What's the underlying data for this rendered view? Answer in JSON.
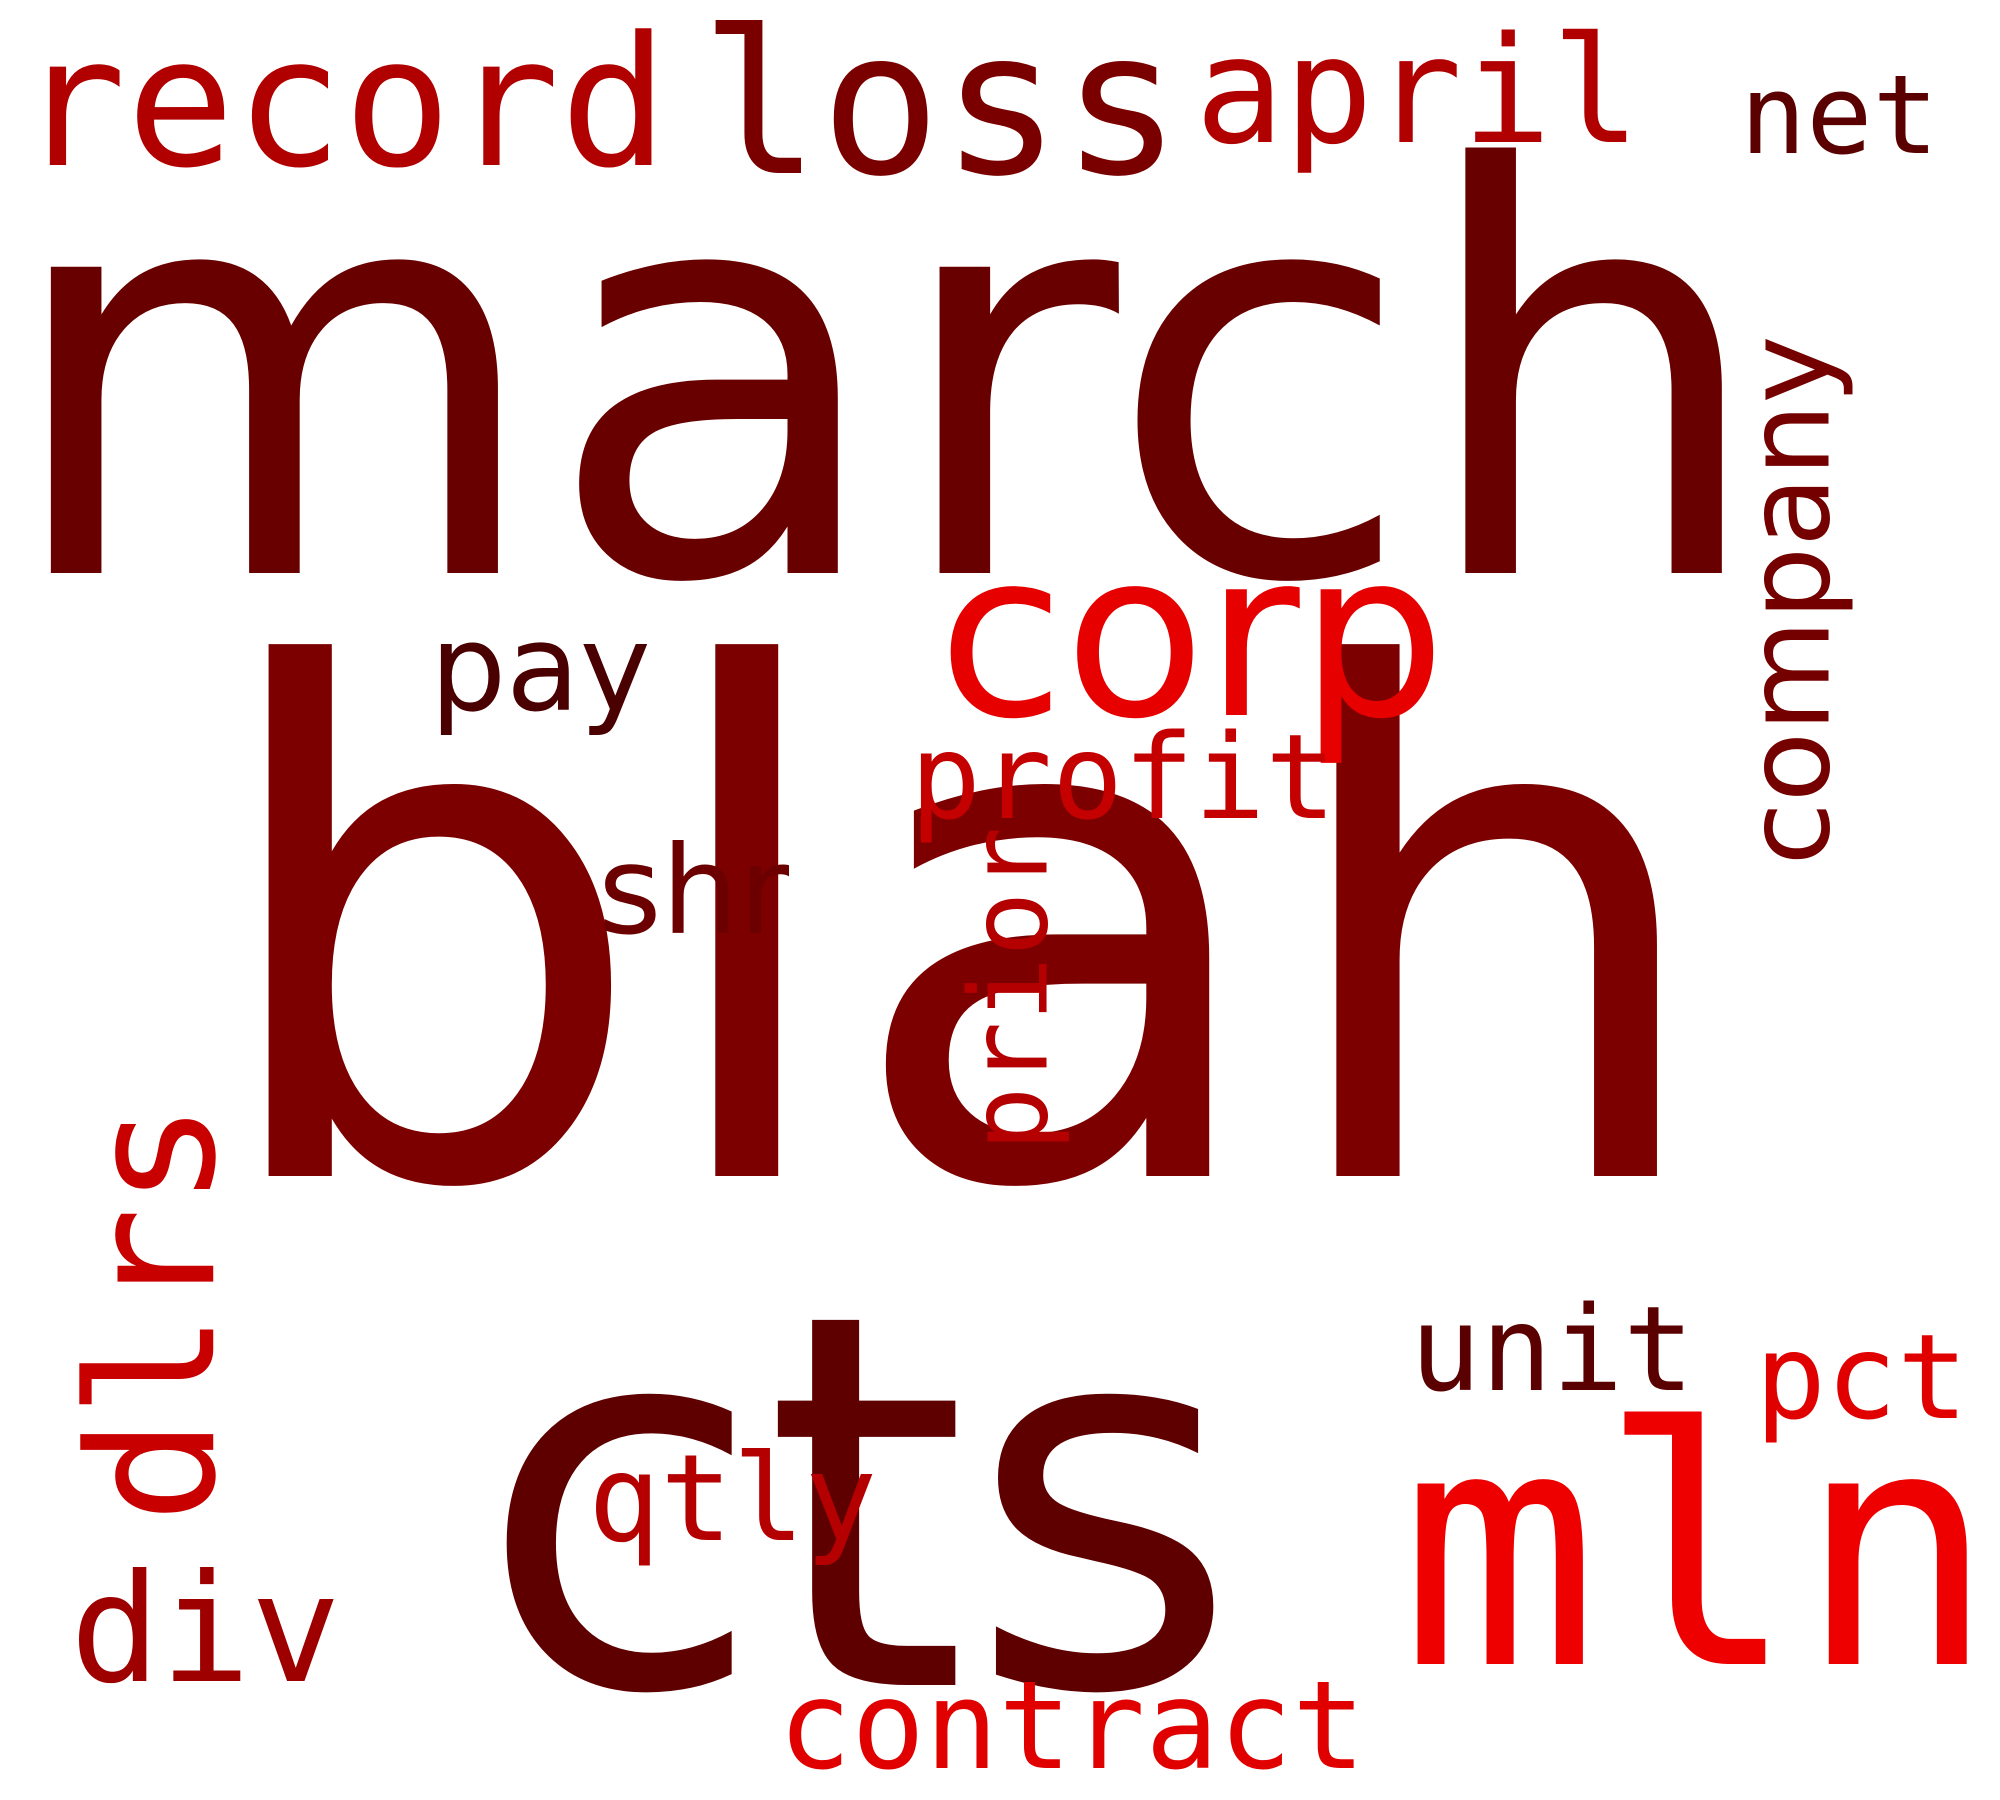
{
  "words": {
    "march": {
      "text": "march",
      "color": "#680000"
    },
    "blah": {
      "text": "blah",
      "color": "#7c0000"
    },
    "cts": {
      "text": "cts",
      "color": "#5f0000"
    },
    "mln": {
      "text": "mln",
      "color": "#ee0000"
    },
    "record": {
      "text": "record",
      "color": "#b00000"
    },
    "loss": {
      "text": "loss",
      "color": "#7a0000"
    },
    "april": {
      "text": "april",
      "color": "#b00000"
    },
    "net": {
      "text": "net",
      "color": "#5a0000"
    },
    "corp": {
      "text": "corp",
      "color": "#e60000"
    },
    "company": {
      "text": "company",
      "color": "#740000"
    },
    "pay": {
      "text": "pay",
      "color": "#4a0000"
    },
    "profit": {
      "text": "profit",
      "color": "#c40000"
    },
    "shr": {
      "text": "shr",
      "color": "#6c0000"
    },
    "prior": {
      "text": "prior",
      "color": "#b40000"
    },
    "dlrs": {
      "text": "dlrs",
      "color": "#c80000"
    },
    "unit": {
      "text": "unit",
      "color": "#5a0000"
    },
    "pct": {
      "text": "pct",
      "color": "#e00000"
    },
    "qtly": {
      "text": "qtly",
      "color": "#b40000"
    },
    "div": {
      "text": "div",
      "color": "#9e0000"
    },
    "contract": {
      "text": "contract",
      "color": "#e00000"
    }
  }
}
